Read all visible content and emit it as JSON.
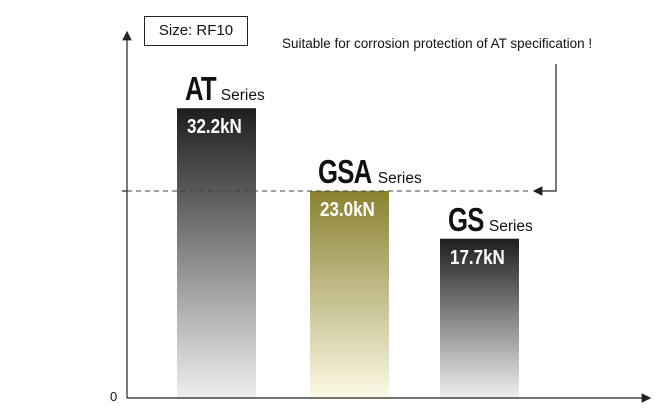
{
  "size_label": "Size: RF10",
  "note": "Suitable for corrosion protection of AT specification !",
  "chart_data": {
    "type": "bar",
    "title": "Size: RF10",
    "annotation": "Suitable for corrosion protection of AT specification !",
    "categories": [
      "AT",
      "GSA",
      "GS"
    ],
    "series_suffix": "Series",
    "values": [
      32.2,
      23.0,
      17.7
    ],
    "value_labels": [
      "32.2kN",
      "23.0kN",
      "17.7kN"
    ],
    "unit": "kN",
    "reference_line": 23.0,
    "ylim": [
      0,
      42
    ],
    "y_tick_labels": [
      "0"
    ],
    "grid": false,
    "colors": {
      "AT": [
        "#1e1e1e",
        "#efefef"
      ],
      "GSA": [
        "#8a8130",
        "#fcfae6"
      ],
      "GS": [
        "#1e1e1e",
        "#efefef"
      ]
    }
  }
}
